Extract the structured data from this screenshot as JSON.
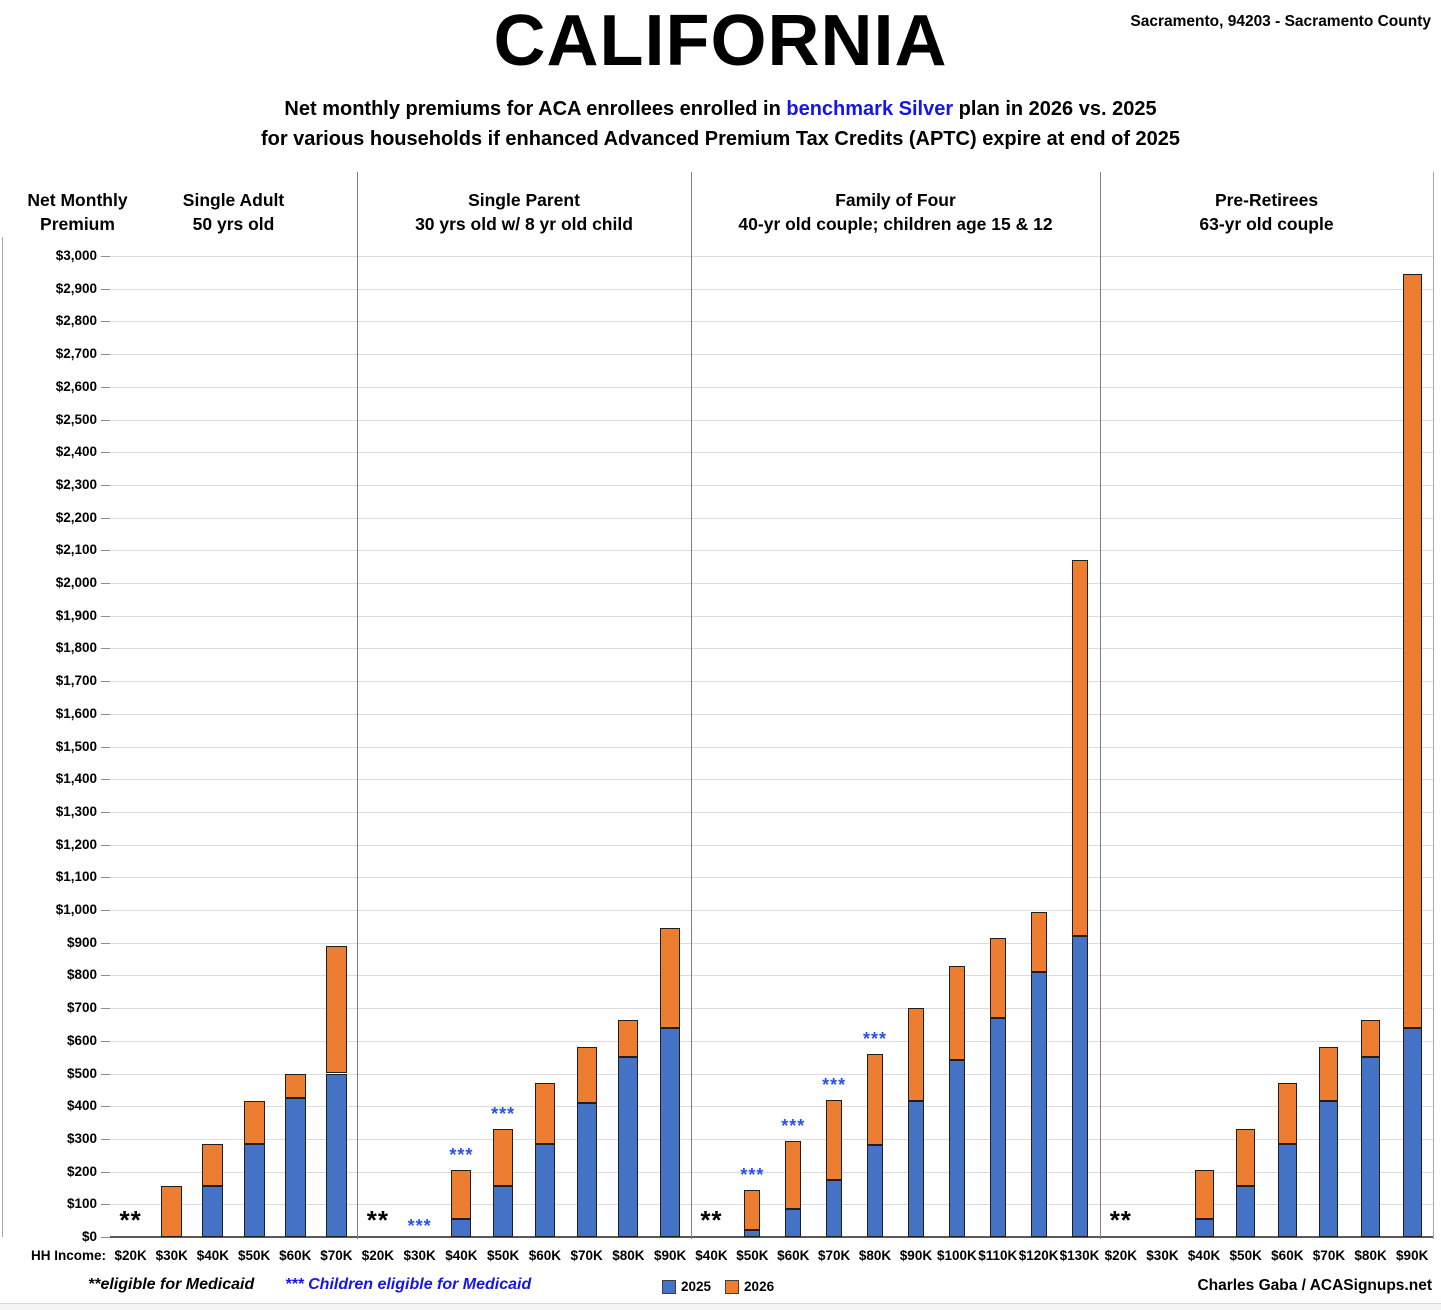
{
  "header": {
    "title": "CALIFORNIA",
    "location": "Sacramento, 94203 - Sacramento County",
    "subtitle_1a": "Net monthly premiums for ACA enrollees enrolled in ",
    "subtitle_1b": "benchmark Silver",
    "subtitle_1c": " plan in 2026 vs. 2025",
    "subtitle_2": "for various households if enhanced Advanced Premium Tax Credits (APTC) expire at end of 2025"
  },
  "axis": {
    "y_label_line1": "Net Monthly",
    "y_label_line2": "Premium",
    "x_axis_label": "HH Income:"
  },
  "footer": {
    "footnote_medicaid": "**eligible for Medicaid",
    "footnote_children": "*** Children eligible for Medicaid",
    "credit": "Charles Gaba / ACASignups.net"
  },
  "legend": [
    {
      "label": "2025",
      "color": "#4472C4"
    },
    {
      "label": "2026",
      "color": "#ED7D31"
    }
  ],
  "chart_data": {
    "type": "bar",
    "stacked": true,
    "title": "CALIFORNIA",
    "subtitle": "Net monthly premiums for ACA enrollees enrolled in benchmark Silver plan in 2026 vs. 2025 for various households if enhanced Advanced Premium Tax Credits (APTC) expire at end of 2025",
    "ylabel": "Net Monthly Premium",
    "xlabel": "HH Income",
    "ylim": [
      0,
      3000
    ],
    "ytick_step": 100,
    "grid": true,
    "legend_position": "bottom",
    "series_names": [
      "2025",
      "2026"
    ],
    "colors": {
      "series_2025": "#4472C4",
      "series_2026": "#ED7D31",
      "highlight_text": "#1515E8",
      "marker_children": "#2B50F0",
      "marker_medicaid": "#000000"
    },
    "y_ticks": [
      "$0",
      "$100",
      "$200",
      "$300",
      "$400",
      "$500",
      "$600",
      "$700",
      "$800",
      "$900",
      "$1,000",
      "$1,100",
      "$1,200",
      "$1,300",
      "$1,400",
      "$1,500",
      "$1,600",
      "$1,700",
      "$1,800",
      "$1,900",
      "$2,000",
      "$2,100",
      "$2,200",
      "$2,300",
      "$2,400",
      "$2,500",
      "$2,600",
      "$2,700",
      "$2,800",
      "$2,900",
      "$3,000"
    ],
    "marker_legend": {
      "**": "eligible for Medicaid",
      "***": "Children eligible for Medicaid"
    },
    "panels": [
      {
        "title1": "Single Adult",
        "title2": "50 yrs old",
        "categories": [
          "$20K",
          "$30K",
          "$40K",
          "$50K",
          "$60K",
          "$70K"
        ],
        "bars": [
          {
            "income": "$20K",
            "p2025": null,
            "p2026": null,
            "marker": "**"
          },
          {
            "income": "$30K",
            "p2025": 0,
            "p2026": 155,
            "marker": null
          },
          {
            "income": "$40K",
            "p2025": 155,
            "p2026": 285,
            "marker": null
          },
          {
            "income": "$50K",
            "p2025": 285,
            "p2026": 415,
            "marker": null
          },
          {
            "income": "$60K",
            "p2025": 425,
            "p2026": 500,
            "marker": null
          },
          {
            "income": "$70K",
            "p2025": 500,
            "p2026": 890,
            "marker": null
          }
        ]
      },
      {
        "title1": "Single Parent",
        "title2": "30 yrs old w/ 8 yr old child",
        "categories": [
          "$20K",
          "$30K",
          "$40K",
          "$50K",
          "$60K",
          "$70K",
          "$80K",
          "$90K"
        ],
        "bars": [
          {
            "income": "$20K",
            "p2025": null,
            "p2026": null,
            "marker": "**"
          },
          {
            "income": "$30K",
            "p2025": null,
            "p2026": null,
            "marker": "***"
          },
          {
            "income": "$40K",
            "p2025": 55,
            "p2026": 205,
            "marker": "***"
          },
          {
            "income": "$50K",
            "p2025": 155,
            "p2026": 330,
            "marker": "***"
          },
          {
            "income": "$60K",
            "p2025": 285,
            "p2026": 470,
            "marker": null
          },
          {
            "income": "$70K",
            "p2025": 410,
            "p2026": 580,
            "marker": null
          },
          {
            "income": "$80K",
            "p2025": 550,
            "p2026": 665,
            "marker": null
          },
          {
            "income": "$90K",
            "p2025": 640,
            "p2026": 945,
            "marker": null
          }
        ]
      },
      {
        "title1": "Family of Four",
        "title2": "40-yr old couple; children age 15 & 12",
        "categories": [
          "$40K",
          "$50K",
          "$60K",
          "$70K",
          "$80K",
          "$90K",
          "$100K",
          "$110K",
          "$120K",
          "$130K"
        ],
        "bars": [
          {
            "income": "$40K",
            "p2025": null,
            "p2026": null,
            "marker": "**"
          },
          {
            "income": "$50K",
            "p2025": 20,
            "p2026": 145,
            "marker": "***"
          },
          {
            "income": "$60K",
            "p2025": 85,
            "p2026": 295,
            "marker": "***"
          },
          {
            "income": "$70K",
            "p2025": 175,
            "p2026": 420,
            "marker": "***"
          },
          {
            "income": "$80K",
            "p2025": 280,
            "p2026": 560,
            "marker": "***"
          },
          {
            "income": "$90K",
            "p2025": 415,
            "p2026": 700,
            "marker": null
          },
          {
            "income": "$100K",
            "p2025": 540,
            "p2026": 830,
            "marker": null
          },
          {
            "income": "$110K",
            "p2025": 670,
            "p2026": 915,
            "marker": null
          },
          {
            "income": "$120K",
            "p2025": 810,
            "p2026": 995,
            "marker": null
          },
          {
            "income": "$130K",
            "p2025": 920,
            "p2026": 2070,
            "marker": null
          }
        ]
      },
      {
        "title1": "Pre-Retirees",
        "title2": "63-yr old couple",
        "categories": [
          "$20K",
          "$30K",
          "$40K",
          "$50K",
          "$60K",
          "$70K",
          "$80K",
          "$90K"
        ],
        "bars": [
          {
            "income": "$20K",
            "p2025": null,
            "p2026": null,
            "marker": "**"
          },
          {
            "income": "$30K",
            "p2025": null,
            "p2026": null,
            "marker": null
          },
          {
            "income": "$40K",
            "p2025": 55,
            "p2026": 205,
            "marker": null
          },
          {
            "income": "$50K",
            "p2025": 155,
            "p2026": 330,
            "marker": null
          },
          {
            "income": "$60K",
            "p2025": 285,
            "p2026": 470,
            "marker": null
          },
          {
            "income": "$70K",
            "p2025": 415,
            "p2026": 580,
            "marker": null
          },
          {
            "income": "$80K",
            "p2025": 550,
            "p2026": 665,
            "marker": null
          },
          {
            "income": "$90K",
            "p2025": 640,
            "p2026": 2945,
            "marker": null
          }
        ]
      }
    ]
  }
}
